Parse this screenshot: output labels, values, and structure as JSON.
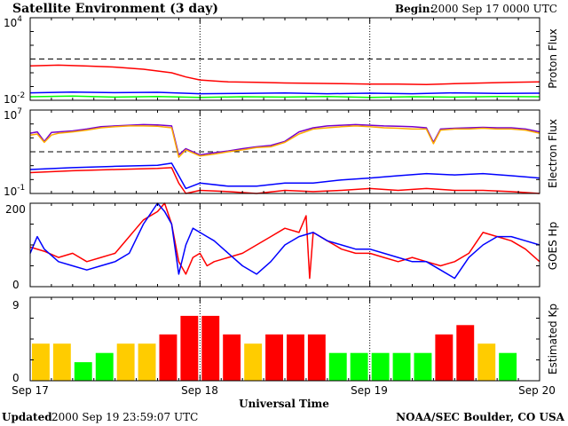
{
  "header": {
    "title": "Satellite Environment (3 day)",
    "begin_label": "Begin:",
    "begin_value": "2000 Sep 17 0000 UTC"
  },
  "footer": {
    "updated_label": "Updated",
    "updated_value": "2000 Sep 19 23:59:07 UTC",
    "source": "NOAA/SEC Boulder, CO USA"
  },
  "x_axis": {
    "label": "Universal Time",
    "ticks": [
      "Sep 17",
      "Sep 18",
      "Sep 19",
      "Sep 20"
    ]
  },
  "colors": {
    "red": "#ff0000",
    "blue": "#0000ff",
    "green": "#00ff00",
    "purple": "#7700cc",
    "orange": "#ffaa00",
    "yellow": "#ffcc00"
  },
  "chart_data": [
    {
      "type": "line",
      "panel": "proton",
      "ylabel": "Proton Flux",
      "yscale": "log",
      "ylim": [
        0.01,
        10000
      ],
      "ytick_labels": [
        {
          "base": "10",
          "exp": "4"
        },
        {
          "base": "10",
          "exp": "-2"
        }
      ],
      "threshold": 10,
      "x_unit": "hours since Sep 17 0000 UTC",
      "series": [
        {
          "color": "#ff0000",
          "x": [
            0,
            4,
            8,
            12,
            16,
            20,
            22,
            24,
            26,
            28,
            32,
            36,
            40,
            44,
            48,
            52,
            56,
            60,
            64,
            68,
            72
          ],
          "y": [
            3.2,
            3.6,
            3.1,
            2.6,
            1.8,
            1.0,
            0.5,
            0.3,
            0.25,
            0.22,
            0.2,
            0.18,
            0.17,
            0.16,
            0.15,
            0.15,
            0.14,
            0.16,
            0.18,
            0.2,
            0.22
          ]
        },
        {
          "color": "#0000ff",
          "x": [
            0,
            6,
            12,
            18,
            24,
            30,
            36,
            42,
            48,
            54,
            60,
            66,
            72
          ],
          "y": [
            0.035,
            0.04,
            0.036,
            0.038,
            0.03,
            0.032,
            0.034,
            0.03,
            0.033,
            0.03,
            0.035,
            0.032,
            0.033
          ]
        },
        {
          "color": "#00ff00",
          "x": [
            0,
            6,
            12,
            18,
            24,
            30,
            36,
            42,
            48,
            54,
            60,
            66,
            72
          ],
          "y": [
            0.018,
            0.02,
            0.017,
            0.019,
            0.016,
            0.018,
            0.017,
            0.019,
            0.016,
            0.018,
            0.017,
            0.019,
            0.018
          ]
        }
      ]
    },
    {
      "type": "line",
      "panel": "electron",
      "ylabel": "Electron Flux",
      "yscale": "log",
      "ylim": [
        0.1,
        10000000
      ],
      "ytick_labels": [
        {
          "base": "10",
          "exp": "7"
        },
        {
          "base": "10",
          "exp": "-1"
        }
      ],
      "threshold": 1000,
      "x_unit": "hours since Sep 17 0000 UTC",
      "series": [
        {
          "color": "#7700cc",
          "x": [
            0,
            1,
            2,
            3,
            4,
            6,
            8,
            10,
            12,
            14,
            16,
            18,
            20,
            21,
            22,
            24,
            26,
            28,
            30,
            32,
            34,
            36,
            38,
            40,
            42,
            44,
            46,
            48,
            50,
            52,
            54,
            56,
            57,
            58,
            60,
            62,
            64,
            66,
            68,
            70,
            72
          ],
          "y": [
            60000,
            80000,
            10000,
            70000,
            80000,
            100000,
            150000,
            250000,
            300000,
            350000,
            400000,
            380000,
            300000,
            500,
            2000,
            500,
            800,
            1200,
            2000,
            3000,
            4000,
            10000,
            80000,
            200000,
            300000,
            350000,
            400000,
            350000,
            300000,
            280000,
            250000,
            200000,
            8000,
            150000,
            180000,
            200000,
            220000,
            200000,
            200000,
            150000,
            80000
          ]
        },
        {
          "color": "#ffaa00",
          "x": [
            0,
            1,
            2,
            3,
            4,
            6,
            8,
            10,
            12,
            14,
            16,
            18,
            20,
            21,
            22,
            24,
            26,
            28,
            30,
            32,
            34,
            36,
            38,
            40,
            42,
            44,
            46,
            48,
            50,
            52,
            54,
            56,
            57,
            58,
            60,
            62,
            64,
            66,
            68,
            70,
            72
          ],
          "y": [
            40000,
            50000,
            8000,
            40000,
            60000,
            80000,
            120000,
            200000,
            250000,
            300000,
            300000,
            280000,
            200000,
            300,
            1500,
            400,
            600,
            1000,
            1500,
            2500,
            3000,
            8000,
            50000,
            150000,
            200000,
            250000,
            300000,
            250000,
            200000,
            180000,
            150000,
            150000,
            6000,
            120000,
            150000,
            150000,
            180000,
            150000,
            150000,
            120000,
            60000
          ]
        },
        {
          "color": "#0000ff",
          "x": [
            0,
            6,
            12,
            18,
            20,
            21,
            22,
            24,
            28,
            32,
            36,
            40,
            44,
            48,
            52,
            56,
            60,
            64,
            68,
            72
          ],
          "y": [
            20,
            30,
            40,
            50,
            80,
            5,
            0.3,
            1,
            0.5,
            0.5,
            1,
            1,
            2,
            3,
            5,
            8,
            6,
            8,
            5,
            3
          ]
        },
        {
          "color": "#ff0000",
          "x": [
            0,
            6,
            12,
            18,
            20,
            21,
            22,
            24,
            28,
            32,
            36,
            40,
            44,
            48,
            52,
            56,
            60,
            64,
            68,
            72
          ],
          "y": [
            10,
            15,
            20,
            25,
            30,
            1,
            0.1,
            0.2,
            0.15,
            0.1,
            0.2,
            0.15,
            0.2,
            0.3,
            0.2,
            0.3,
            0.2,
            0.2,
            0.15,
            0.1
          ]
        }
      ]
    },
    {
      "type": "line",
      "panel": "goes_hp",
      "ylabel": "GOES Hp",
      "yscale": "linear",
      "ylim": [
        0,
        200
      ],
      "ytick_labels": [
        "200",
        "0"
      ],
      "x_unit": "hours since Sep 17 0000 UTC",
      "series": [
        {
          "color": "#ff0000",
          "x": [
            0,
            2,
            4,
            6,
            8,
            10,
            12,
            14,
            15,
            16,
            18,
            19,
            20,
            21,
            22,
            23,
            24,
            25,
            26,
            28,
            30,
            32,
            34,
            36,
            38,
            39,
            39.5,
            40,
            42,
            44,
            46,
            48,
            50,
            52,
            54,
            56,
            58,
            60,
            62,
            64,
            66,
            68,
            70,
            72
          ],
          "y": [
            95,
            85,
            70,
            80,
            60,
            70,
            80,
            120,
            140,
            160,
            180,
            200,
            150,
            60,
            30,
            70,
            80,
            50,
            60,
            70,
            80,
            100,
            120,
            140,
            130,
            170,
            20,
            130,
            110,
            90,
            80,
            80,
            70,
            60,
            70,
            60,
            50,
            60,
            80,
            130,
            120,
            110,
            90,
            60
          ]
        },
        {
          "color": "#0000ff",
          "x": [
            0,
            1,
            2,
            4,
            6,
            8,
            10,
            12,
            14,
            16,
            18,
            19,
            20,
            21,
            22,
            23,
            24,
            25,
            26,
            28,
            30,
            32,
            34,
            36,
            38,
            40,
            42,
            44,
            46,
            48,
            50,
            52,
            54,
            56,
            58,
            60,
            62,
            64,
            66,
            68,
            70,
            72
          ],
          "y": [
            80,
            120,
            90,
            60,
            50,
            40,
            50,
            60,
            80,
            150,
            200,
            180,
            150,
            30,
            100,
            140,
            130,
            120,
            110,
            80,
            50,
            30,
            60,
            100,
            120,
            130,
            110,
            100,
            90,
            90,
            80,
            70,
            60,
            60,
            40,
            20,
            70,
            100,
            120,
            120,
            110,
            100
          ]
        }
      ]
    },
    {
      "type": "bar",
      "panel": "kp",
      "ylabel": "Estimated Kp",
      "ylim": [
        0,
        9
      ],
      "ytick_labels": [
        "9",
        "0"
      ],
      "bin_hours": 3,
      "values": [
        4,
        4,
        2,
        3,
        4,
        4,
        5,
        7,
        7,
        5,
        4,
        5,
        5,
        5,
        3,
        3,
        3,
        3,
        3,
        5,
        6,
        4,
        3
      ],
      "colors": [
        "#ffcc00",
        "#ffcc00",
        "#00ff00",
        "#00ff00",
        "#ffcc00",
        "#ffcc00",
        "#ff0000",
        "#ff0000",
        "#ff0000",
        "#ff0000",
        "#ffcc00",
        "#ff0000",
        "#ff0000",
        "#ff0000",
        "#00ff00",
        "#00ff00",
        "#00ff00",
        "#00ff00",
        "#00ff00",
        "#ff0000",
        "#ff0000",
        "#ffcc00",
        "#00ff00"
      ]
    }
  ]
}
